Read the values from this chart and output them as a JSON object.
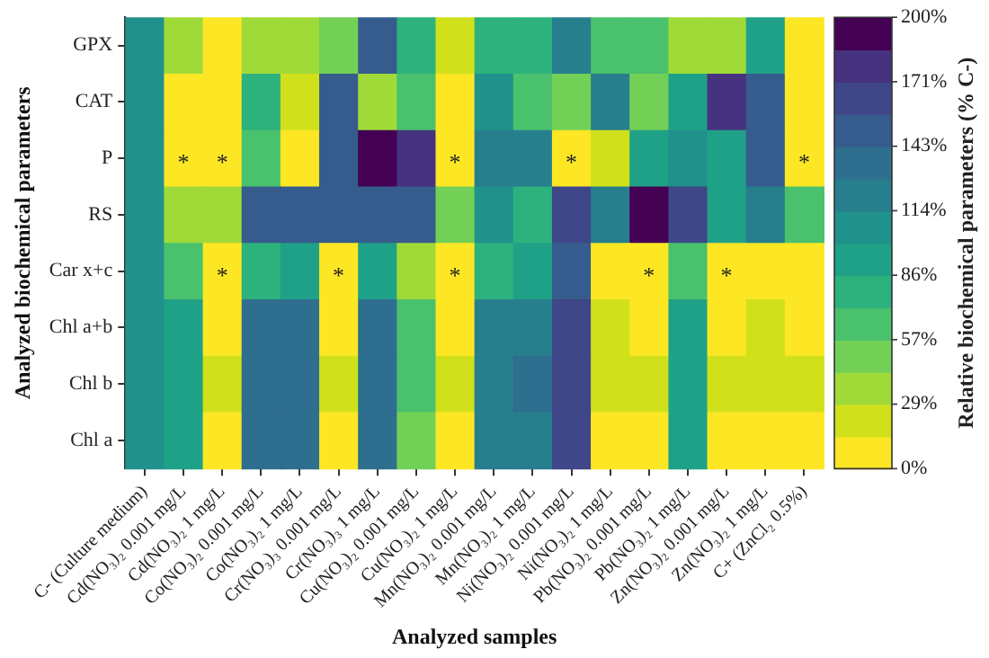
{
  "chart_data": {
    "type": "heatmap",
    "xlabel": "Analyzed samples",
    "ylabel": "Analyzed biochemical parameters",
    "clabel": "Relative biochemical parameters (% C-)",
    "categories": [
      "C- (Culture medium)",
      "Cd(NO₃)₂ 0.001 mg/L",
      "Cd(NO₃)₂ 1 mg/L",
      "Co(NO₃)₂ 0.001 mg/L",
      "Co(NO₃)₂ 1 mg/L",
      "Cr(NO₃)₃ 0.001 mg/L",
      "Cr(NO₃)₃ 1 mg/L",
      "Cu(NO₃)₂ 0.001 mg/L",
      "Cu(NO₃)₂ 1 mg/L",
      "Mn(NO₃)₂ 0.001 mg/L",
      "Mn(NO₃)₂ 1 mg/L",
      "Ni(NO₃)₂ 0.001 mg/L",
      "Ni(NO₃)₂ 1 mg/L",
      "Pb(NO₃)₂ 0.001 mg/L",
      "Pb(NO₃)₂ 1 mg/L",
      "Zn(NO₃)₂ 0.001 mg/L",
      "Zn(NO₃)₂ 1 mg/L",
      "C+ (ZnCl₂ 0.5%)"
    ],
    "y_categories": [
      "GPX",
      "CAT",
      "P",
      "RS",
      "Car x+c",
      "Chl a+b",
      "Chl b",
      "Chl a"
    ],
    "cells": [
      [
        100,
        36,
        7,
        36,
        36,
        50,
        150,
        79,
        21,
        79,
        79,
        121,
        64,
        64,
        36,
        36,
        93,
        7
      ],
      [
        100,
        7,
        7,
        79,
        21,
        150,
        36,
        64,
        7,
        107,
        64,
        50,
        121,
        50,
        93,
        179,
        150,
        7
      ],
      [
        100,
        7,
        7,
        64,
        7,
        150,
        193,
        179,
        7,
        121,
        121,
        7,
        21,
        93,
        107,
        93,
        150,
        7
      ],
      [
        100,
        36,
        36,
        150,
        150,
        150,
        150,
        150,
        50,
        107,
        79,
        164,
        121,
        190,
        164,
        93,
        121,
        64
      ],
      [
        100,
        64,
        7,
        79,
        93,
        7,
        93,
        36,
        7,
        79,
        93,
        150,
        7,
        7,
        64,
        7,
        7,
        7
      ],
      [
        100,
        93,
        7,
        136,
        136,
        7,
        136,
        64,
        7,
        121,
        121,
        164,
        21,
        7,
        93,
        7,
        21,
        7
      ],
      [
        100,
        93,
        21,
        136,
        136,
        21,
        136,
        64,
        21,
        121,
        136,
        164,
        21,
        21,
        93,
        21,
        21,
        21
      ],
      [
        100,
        93,
        7,
        136,
        136,
        7,
        136,
        50,
        7,
        121,
        121,
        164,
        7,
        7,
        93,
        7,
        7,
        7
      ]
    ],
    "cell_labels": [
      [
        null,
        null,
        null,
        null,
        null,
        null,
        null,
        null,
        null,
        null,
        null,
        null,
        null,
        null,
        null,
        null,
        null,
        null
      ],
      [
        null,
        null,
        null,
        null,
        null,
        null,
        null,
        null,
        null,
        null,
        null,
        null,
        null,
        null,
        null,
        null,
        null,
        null
      ],
      [
        null,
        "*",
        "*",
        null,
        null,
        null,
        null,
        null,
        "*",
        null,
        null,
        "*",
        null,
        null,
        null,
        null,
        null,
        "*"
      ],
      [
        null,
        null,
        null,
        null,
        null,
        null,
        null,
        null,
        null,
        null,
        null,
        null,
        null,
        null,
        null,
        null,
        null,
        null
      ],
      [
        null,
        null,
        "*",
        null,
        null,
        "*",
        null,
        null,
        "*",
        null,
        null,
        null,
        null,
        "*",
        null,
        "*",
        null,
        null
      ],
      [
        null,
        null,
        null,
        null,
        null,
        null,
        null,
        null,
        null,
        null,
        null,
        null,
        null,
        null,
        null,
        null,
        null,
        null
      ],
      [
        null,
        null,
        null,
        null,
        null,
        null,
        null,
        null,
        null,
        null,
        null,
        null,
        null,
        null,
        null,
        null,
        null,
        null
      ],
      [
        null,
        null,
        null,
        null,
        null,
        null,
        null,
        null,
        null,
        null,
        null,
        null,
        null,
        null,
        null,
        null,
        null,
        null
      ]
    ],
    "colors": [
      "#fde725",
      "#d0e11c",
      "#a0da39",
      "#73d056",
      "#4ac16d",
      "#2db27d",
      "#1fa187",
      "#21918c",
      "#277f8e",
      "#2e6e8e",
      "#365c8d",
      "#3f4788",
      "#46327e",
      "#440154"
    ],
    "clim": [
      0,
      200
    ],
    "cticks": [
      {
        "value": 0,
        "label": "0%"
      },
      {
        "value": 28.57,
        "label": "29%"
      },
      {
        "value": 57.14,
        "label": "57%"
      },
      {
        "value": 85.71,
        "label": "86%"
      },
      {
        "value": 114.29,
        "label": "114%"
      },
      {
        "value": 142.86,
        "label": "143%"
      },
      {
        "value": 171.43,
        "label": "171%"
      },
      {
        "value": 200,
        "label": "200%"
      }
    ]
  }
}
